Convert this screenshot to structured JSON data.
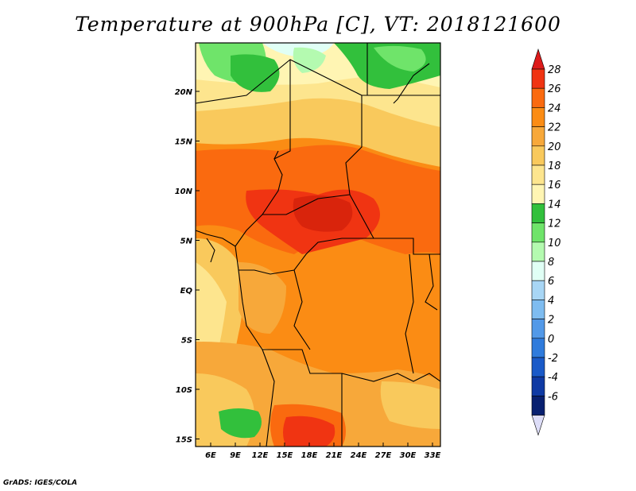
{
  "title": "Temperature at 900hPa [C], VT: 2018121600",
  "credit": "GrADS: IGES/COLA",
  "map": {
    "lon_labels": [
      "6E",
      "9E",
      "12E",
      "15E",
      "18E",
      "21E",
      "24E",
      "27E",
      "30E",
      "33E"
    ],
    "lat_labels": [
      "20N",
      "15N",
      "10N",
      "5N",
      "EQ",
      "5S",
      "10S",
      "15S"
    ]
  },
  "colorbar": {
    "levels": [
      "28",
      "26",
      "24",
      "22",
      "20",
      "18",
      "16",
      "14",
      "12",
      "10",
      "8",
      "6",
      "4",
      "2",
      "0",
      "-2",
      "-4",
      "-6"
    ],
    "colors": [
      "#f03412",
      "#fa6a0f",
      "#fb8c14",
      "#f7a83a",
      "#f9c95c",
      "#fde58e",
      "#fff5b3",
      "#32c03c",
      "#6fe46a",
      "#b4fab0",
      "#e0fff5",
      "#a8d6f5",
      "#7ebcf0",
      "#5299e8",
      "#2f7bdc",
      "#1a5ac8",
      "#0f3aa4",
      "#082070"
    ],
    "top_arrow_color": "#dd1a1a",
    "bottom_arrow_color": "#ddddf8"
  }
}
